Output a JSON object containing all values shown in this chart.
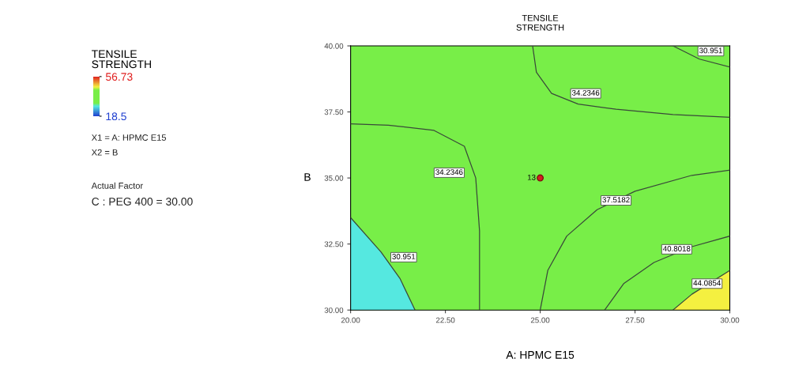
{
  "chart_data": {
    "type": "line",
    "title": "TENSILE\nSTRENGTH",
    "xlabel": "A: HPMC E15",
    "ylabel": "B",
    "clabel": "TENSILE\nSTRENGTH",
    "clim": [
      18.5,
      56.73
    ],
    "cticks": [
      {
        "value": 56.73,
        "label": "56.73"
      },
      {
        "value": 18.5,
        "label": "18.5"
      }
    ],
    "xlim": [
      20,
      30
    ],
    "ylim": [
      30,
      40
    ],
    "xticks": [
      {
        "value": 20,
        "label": "20.00"
      },
      {
        "value": 22.5,
        "label": "22.50"
      },
      {
        "value": 25,
        "label": "25.00"
      },
      {
        "value": 27.5,
        "label": "27.50"
      },
      {
        "value": 30,
        "label": "30.00"
      }
    ],
    "yticks": [
      {
        "value": 30,
        "label": "30.00"
      },
      {
        "value": 32.5,
        "label": "32.50"
      },
      {
        "value": 35,
        "label": "35.00"
      },
      {
        "value": 37.5,
        "label": "37.50"
      },
      {
        "value": 40,
        "label": "40.00"
      }
    ],
    "grid": false,
    "series": [
      {
        "color": "#3a4a3a",
        "x": [
          23.4,
          23.4,
          23.3,
          23.0,
          22.2,
          21.0,
          20.0
        ],
        "values": [
          30,
          33,
          35,
          36.2,
          36.8,
          37.0,
          37.05
        ]
      },
      {
        "color": "#3a4a3a",
        "x": [
          24.8,
          24.9,
          25.3,
          26.0,
          27.0,
          28.5,
          30.0
        ],
        "values": [
          40,
          39,
          38.2,
          37.8,
          37.6,
          37.4,
          37.3
        ]
      },
      {
        "type": "area",
        "color": "#55e8e0",
        "x": [
          20.0,
          20.8,
          21.3,
          21.7
        ],
        "values": [
          33.5,
          32.2,
          31.2,
          30
        ]
      },
      {
        "color": "#3a4a3a",
        "x": [
          28.5,
          29.2,
          30.0
        ],
        "values": [
          40,
          39.5,
          39.2
        ]
      },
      {
        "color": "#3a4a3a",
        "x": [
          25.0,
          25.2,
          25.7,
          26.5,
          27.5,
          29.0,
          30.0
        ],
        "values": [
          30,
          31.5,
          32.8,
          33.8,
          34.5,
          35.1,
          35.3
        ]
      },
      {
        "color": "#3a4a3a",
        "x": [
          26.7,
          27.2,
          28.0,
          29.0,
          30.0
        ],
        "values": [
          30,
          31,
          31.8,
          32.4,
          32.8
        ]
      },
      {
        "type": "area",
        "color": "#f4f040",
        "x": [
          28.5,
          29.0,
          30.0
        ],
        "values": [
          30,
          30.6,
          31.5
        ]
      },
      {
        "type": "scatter",
        "color": "#d42020",
        "x": [
          25
        ],
        "values": [
          35
        ]
      }
    ],
    "annotations": [
      "X1 = A: HPMC E15",
      "X2 = B",
      "Actual Factor",
      "C : PEG 400 = 30.00",
      {
        "text": "34.2346",
        "x": 22.6,
        "y": 35.2
      },
      {
        "text": "34.2346",
        "x": 26.2,
        "y": 38.2
      },
      {
        "text": "30.951",
        "x": 21.4,
        "y": 32.0
      },
      {
        "text": "30.951",
        "x": 29.5,
        "y": 39.8
      },
      {
        "text": "37.5182",
        "x": 27.0,
        "y": 34.15
      },
      {
        "text": "40.8018",
        "x": 28.6,
        "y": 32.3
      },
      {
        "text": "44.0854",
        "x": 29.4,
        "y": 31.0
      },
      {
        "text": "13",
        "x": 25,
        "y": 35
      }
    ]
  }
}
